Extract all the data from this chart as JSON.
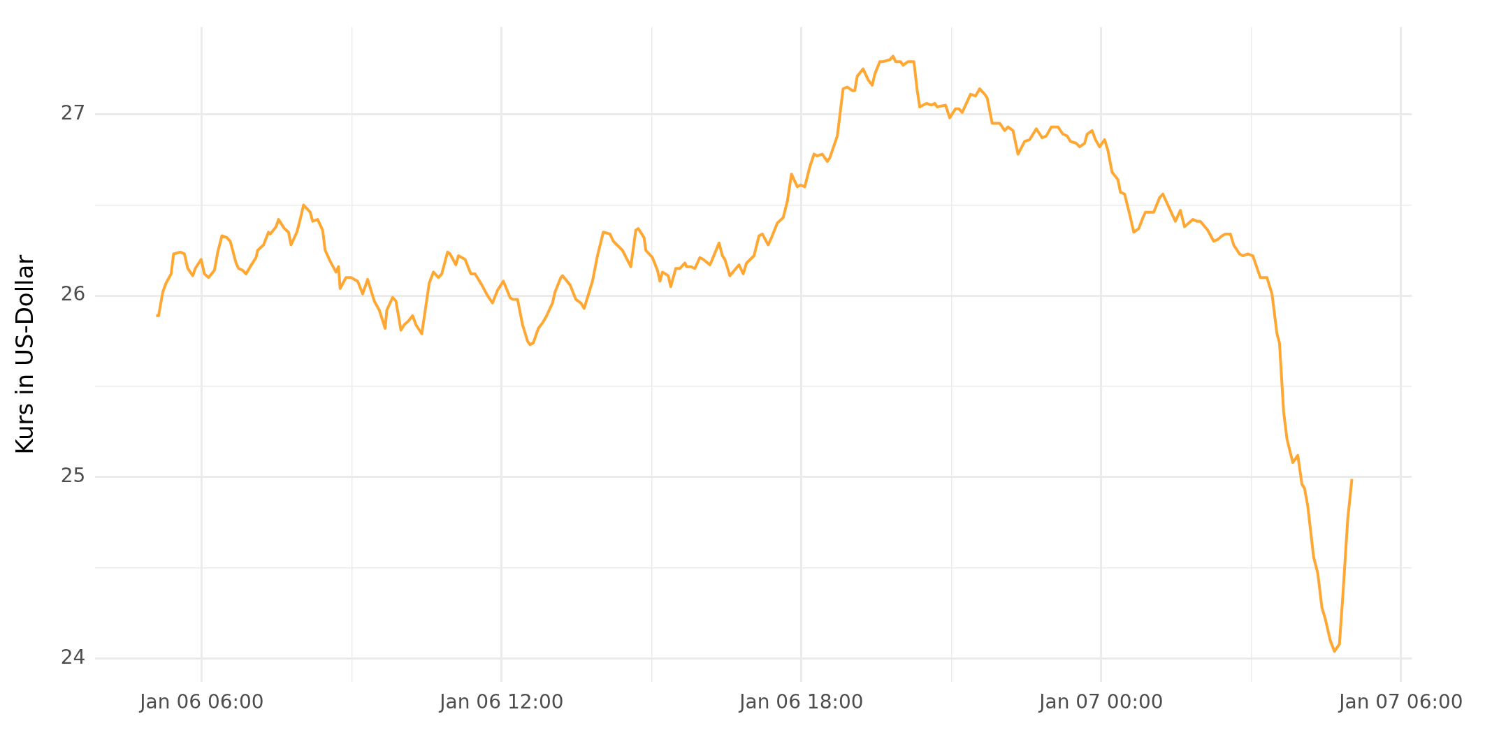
{
  "chart_data": {
    "type": "line",
    "ylabel": "Kurs in US-Dollar",
    "x": [
      "--01-06T05:05",
      "--01-06T05:08",
      "--01-06T05:13",
      "--01-06T05:17",
      "--01-06T05:23",
      "--01-06T05:26",
      "--01-06T05:34",
      "--01-06T05:39",
      "--01-06T05:43",
      "--01-06T05:49",
      "--01-06T05:52",
      "--01-06T05:59",
      "--01-06T06:03",
      "--01-06T06:08",
      "--01-06T06:15",
      "--01-06T06:19",
      "--01-06T06:24",
      "--01-06T06:30",
      "--01-06T06:34",
      "--01-06T06:41",
      "--01-06T06:44",
      "--01-06T06:49",
      "--01-06T06:53",
      "--01-06T06:58",
      "--01-06T07:05",
      "--01-06T07:07",
      "--01-06T07:14",
      "--01-06T07:20",
      "--01-06T07:22",
      "--01-06T07:29",
      "--01-06T07:32",
      "--01-06T07:39",
      "--01-06T07:44",
      "--01-06T07:47",
      "--01-06T07:54",
      "--01-06T07:58",
      "--01-06T08:02",
      "--01-06T08:10",
      "--01-06T08:13",
      "--01-06T08:19",
      "--01-06T08:25",
      "--01-06T08:28",
      "--01-06T08:34",
      "--01-06T08:41",
      "--01-06T08:44",
      "--01-06T08:46",
      "--01-06T08:53",
      "--01-06T08:59",
      "--01-06T09:07",
      "--01-06T09:13",
      "--01-06T09:19",
      "--01-06T09:27",
      "--01-06T09:33",
      "--01-06T09:40",
      "--01-06T09:42",
      "--01-06T09:49",
      "--01-06T09:53",
      "--01-06T09:59",
      "--01-06T10:03",
      "--01-06T10:08",
      "--01-06T10:13",
      "--01-06T10:17",
      "--01-06T10:24",
      "--01-06T10:33",
      "--01-06T10:38",
      "--01-06T10:44",
      "--01-06T10:48",
      "--01-06T10:55",
      "--01-06T10:58",
      "--01-06T11:05",
      "--01-06T11:08",
      "--01-06T11:16",
      "--01-06T11:23",
      "--01-06T11:28",
      "--01-06T11:36",
      "--01-06T11:43",
      "--01-06T11:49",
      "--01-06T11:55",
      "--01-06T12:02",
      "--01-06T12:10",
      "--01-06T12:13",
      "--01-06T12:19",
      "--01-06T12:25",
      "--01-06T12:31",
      "--01-06T12:34",
      "--01-06T12:38",
      "--01-06T12:44",
      "--01-06T12:49",
      "--01-06T12:54",
      "--01-06T13:01",
      "--01-06T13:04",
      "--01-06T13:11",
      "--01-06T13:13",
      "--01-06T13:22",
      "--01-06T13:29",
      "--01-06T13:35",
      "--01-06T13:39",
      "--01-06T13:49",
      "--01-06T13:55",
      "--01-06T14:02",
      "--01-06T14:10",
      "--01-06T14:14",
      "--01-06T14:25",
      "--01-06T14:35",
      "--01-06T14:41",
      "--01-06T14:44",
      "--01-06T14:51",
      "--01-06T14:53",
      "--01-06T15:01",
      "--01-06T15:07",
      "--01-06T15:10",
      "--01-06T15:13",
      "--01-06T15:20",
      "--01-06T15:23",
      "--01-06T15:29",
      "--01-06T15:34",
      "--01-06T15:40",
      "--01-06T15:42",
      "--01-06T15:47",
      "--01-06T15:52",
      "--01-06T15:58",
      "--01-06T16:02",
      "--01-06T16:10",
      "--01-06T16:12",
      "--01-06T16:21",
      "--01-06T16:25",
      "--01-06T16:28",
      "--01-06T16:34",
      "--01-06T16:45",
      "--01-06T16:50",
      "--01-06T16:54",
      "--01-06T17:03",
      "--01-06T17:09",
      "--01-06T17:13",
      "--01-06T17:20",
      "--01-06T17:24",
      "--01-06T17:31",
      "--01-06T17:38",
      "--01-06T17:43",
      "--01-06T17:48",
      "--01-06T17:55",
      "--01-06T17:59",
      "--01-06T18:04",
      "--01-06T18:10",
      "--01-06T18:15",
      "--01-06T18:19",
      "--01-06T18:25",
      "--01-06T18:31",
      "--01-06T18:34",
      "--01-06T18:43",
      "--01-06T18:50",
      "--01-06T18:55",
      "--01-06T19:01",
      "--01-06T19:04",
      "--01-06T19:07",
      "--01-06T19:14",
      "--01-06T19:20",
      "--01-06T19:25",
      "--01-06T19:28",
      "--01-06T19:34",
      "--01-06T19:38",
      "--01-06T19:46",
      "--01-06T19:50",
      "--01-06T19:53",
      "--01-06T19:59",
      "--01-06T20:02",
      "--01-06T20:08",
      "--01-06T20:15",
      "--01-06T20:19",
      "--01-06T20:22",
      "--01-06T20:30",
      "--01-06T20:36",
      "--01-06T20:40",
      "--01-06T20:43",
      "--01-06T20:53",
      "--01-06T20:58",
      "--01-06T21:05",
      "--01-06T21:09",
      "--01-06T21:13",
      "--01-06T21:23",
      "--01-06T21:29",
      "--01-06T21:34",
      "--01-06T21:40",
      "--01-06T21:43",
      "--01-06T21:49",
      "--01-06T21:58",
      "--01-06T22:04",
      "--01-06T22:08",
      "--01-06T22:14",
      "--01-06T22:20",
      "--01-06T22:28",
      "--01-06T22:34",
      "--01-06T22:42",
      "--01-06T22:49",
      "--01-06T22:54",
      "--01-06T23:00",
      "--01-06T23:08",
      "--01-06T23:14",
      "--01-06T23:19",
      "--01-06T23:23",
      "--01-06T23:30",
      "--01-06T23:34",
      "--01-06T23:40",
      "--01-06T23:43",
      "--01-06T23:49",
      "--01-06T23:53",
      "--01-06T23:58",
      "--01-07T00:04",
      "--01-07T00:08",
      "--01-07T00:13",
      "--01-07T00:20",
      "--01-07T00:23",
      "--01-07T00:28",
      "--01-07T00:34",
      "--01-07T00:39",
      "--01-07T00:45",
      "--01-07T00:50",
      "--01-07T00:53",
      "--01-07T00:59",
      "--01-07T01:03",
      "--01-07T01:10",
      "--01-07T01:14",
      "--01-07T01:20",
      "--01-07T01:25",
      "--01-07T01:29",
      "--01-07T01:35",
      "--01-07T01:40",
      "--01-07T01:50",
      "--01-07T01:55",
      "--01-07T01:59",
      "--01-07T02:08",
      "--01-07T02:15",
      "--01-07T02:20",
      "--01-07T02:25",
      "--01-07T02:29",
      "--01-07T02:35",
      "--01-07T02:39",
      "--01-07T02:46",
      "--01-07T02:50",
      "--01-07T02:56",
      "--01-07T03:02",
      "--01-07T03:11",
      "--01-07T03:19",
      "--01-07T03:25",
      "--01-07T03:31",
      "--01-07T03:34",
      "--01-07T03:39",
      "--01-07T03:43",
      "--01-07T03:50",
      "--01-07T03:56",
      "--01-07T04:01",
      "--01-07T04:04",
      "--01-07T04:08",
      "--01-07T04:15",
      "--01-07T04:20",
      "--01-07T04:25",
      "--01-07T04:29",
      "--01-07T04:35",
      "--01-07T04:40",
      "--01-07T04:46",
      "--01-07T04:50",
      "--01-07T04:56",
      "--01-07T05:01"
    ],
    "series": [
      {
        "color": "#ffa733",
        "values": [
          25.89,
          25.89,
          26.02,
          26.07,
          26.12,
          26.23,
          26.24,
          26.23,
          26.15,
          26.11,
          26.15,
          26.2,
          26.12,
          26.1,
          26.14,
          26.24,
          26.33,
          26.32,
          26.3,
          26.18,
          26.15,
          26.14,
          26.12,
          26.16,
          26.21,
          26.25,
          26.28,
          26.35,
          26.34,
          26.38,
          26.42,
          26.37,
          26.35,
          26.28,
          26.35,
          26.42,
          26.5,
          26.46,
          26.41,
          26.42,
          26.36,
          26.25,
          26.19,
          26.13,
          26.16,
          26.04,
          26.1,
          26.1,
          26.08,
          26.01,
          26.09,
          25.97,
          25.92,
          25.82,
          25.92,
          25.99,
          25.97,
          25.81,
          25.84,
          25.86,
          25.89,
          25.84,
          25.79,
          26.07,
          26.13,
          26.1,
          26.12,
          26.24,
          26.23,
          26.17,
          26.22,
          26.2,
          26.12,
          26.12,
          26.06,
          26.0,
          25.96,
          26.03,
          26.08,
          25.99,
          25.98,
          25.98,
          25.84,
          25.75,
          25.73,
          25.74,
          25.82,
          25.85,
          25.89,
          25.96,
          26.02,
          26.1,
          26.11,
          26.06,
          25.98,
          25.96,
          25.93,
          26.08,
          26.22,
          26.35,
          26.34,
          26.3,
          26.25,
          26.16,
          26.36,
          26.37,
          26.32,
          26.25,
          26.21,
          26.14,
          26.08,
          26.13,
          26.11,
          26.05,
          26.15,
          26.15,
          26.18,
          26.16,
          26.16,
          26.15,
          26.21,
          26.2,
          26.17,
          26.19,
          26.29,
          26.22,
          26.2,
          26.11,
          26.17,
          26.12,
          26.18,
          26.22,
          26.33,
          26.34,
          26.28,
          26.32,
          26.4,
          26.43,
          26.52,
          26.67,
          26.6,
          26.61,
          26.6,
          26.71,
          26.78,
          26.77,
          26.78,
          26.74,
          26.76,
          26.88,
          27.14,
          27.15,
          27.13,
          27.13,
          27.21,
          27.25,
          27.19,
          27.16,
          27.22,
          27.29,
          27.29,
          27.3,
          27.32,
          27.29,
          27.29,
          27.27,
          27.29,
          27.29,
          27.13,
          27.04,
          27.06,
          27.05,
          27.06,
          27.04,
          27.05,
          26.98,
          27.03,
          27.03,
          27.01,
          27.11,
          27.1,
          27.14,
          27.11,
          27.09,
          26.95,
          26.95,
          26.91,
          26.93,
          26.91,
          26.78,
          26.85,
          26.86,
          26.92,
          26.87,
          26.88,
          26.93,
          26.93,
          26.89,
          26.88,
          26.85,
          26.84,
          26.82,
          26.84,
          26.89,
          26.91,
          26.86,
          26.82,
          26.86,
          26.8,
          26.68,
          26.64,
          26.57,
          26.56,
          26.45,
          26.35,
          26.37,
          26.43,
          26.46,
          26.46,
          26.46,
          26.54,
          26.56,
          26.5,
          26.45,
          26.41,
          26.47,
          26.38,
          26.42,
          26.41,
          26.41,
          26.36,
          26.3,
          26.31,
          26.33,
          26.34,
          26.34,
          26.28,
          26.23,
          26.22,
          26.23,
          26.22,
          26.1,
          26.1,
          26.01,
          25.79,
          25.74,
          25.36,
          25.21,
          25.08,
          25.12,
          24.96,
          24.94,
          24.84,
          24.56,
          24.47,
          24.28,
          24.22,
          24.1,
          24.04,
          24.08,
          24.34,
          24.77,
          24.99
        ]
      }
    ],
    "xlim": [
      "--01-06T03:52",
      "--01-07T06:13"
    ],
    "xticks": [
      {
        "value": "--01-06T06:00",
        "label": "Jan 06 06:00"
      },
      {
        "value": "--01-06T09:00",
        "label": null
      },
      {
        "value": "--01-06T12:00",
        "label": "Jan 06 12:00"
      },
      {
        "value": "--01-06T15:00",
        "label": null
      },
      {
        "value": "--01-06T18:00",
        "label": "Jan 06 18:00"
      },
      {
        "value": "--01-06T21:00",
        "label": null
      },
      {
        "value": "--01-07T00:00",
        "label": "Jan 07 00:00"
      },
      {
        "value": "--01-07T03:00",
        "label": null
      },
      {
        "value": "--01-07T06:00",
        "label": "Jan 07 06:00"
      }
    ],
    "ylim": [
      23.87,
      27.48
    ],
    "yticks": [
      24,
      {
        "value": 24.5,
        "label": null
      },
      25,
      {
        "value": 25.5,
        "label": null
      },
      26,
      {
        "value": 26.5,
        "label": null
      },
      27
    ],
    "grid": true,
    "line_style": "solid"
  }
}
